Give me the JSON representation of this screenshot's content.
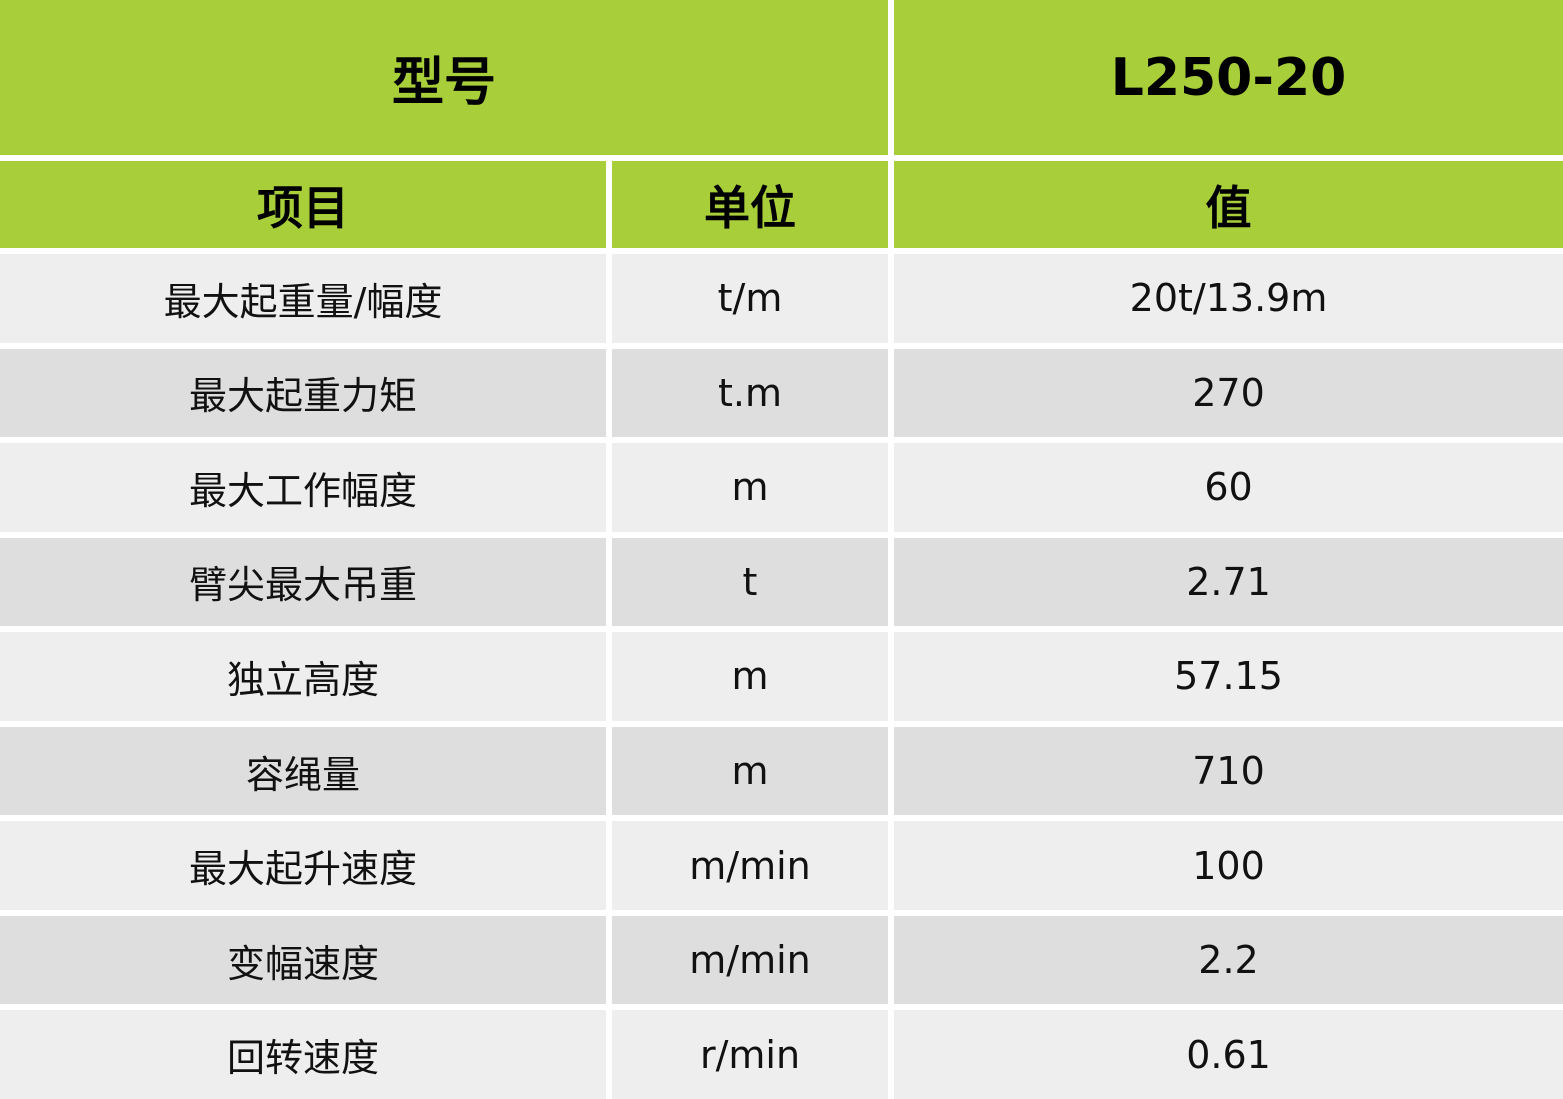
{
  "header": {
    "model_label": "型号",
    "model_value": "L250-20"
  },
  "columns": {
    "item": "项目",
    "unit": "单位",
    "value": "值"
  },
  "rows": [
    {
      "item": "最大起重量/幅度",
      "unit": "t/m",
      "value": "20t/13.9m"
    },
    {
      "item": "最大起重力矩",
      "unit": "t.m",
      "value": "270"
    },
    {
      "item": "最大工作幅度",
      "unit": "m",
      "value": "60"
    },
    {
      "item": "臂尖最大吊重",
      "unit": "t",
      "value": "2.71"
    },
    {
      "item": "独立高度",
      "unit": "m",
      "value": "57.15"
    },
    {
      "item": "容绳量",
      "unit": "m",
      "value": "710"
    },
    {
      "item": "最大起升速度",
      "unit": "m/min",
      "value": "100"
    },
    {
      "item": "变幅速度",
      "unit": "m/min",
      "value": "2.2"
    },
    {
      "item": "回转速度",
      "unit": "r/min",
      "value": "0.61"
    }
  ],
  "colors": {
    "header_green": "#a8ce3a",
    "row_light": "#eeeeee",
    "row_dark": "#dedede"
  }
}
